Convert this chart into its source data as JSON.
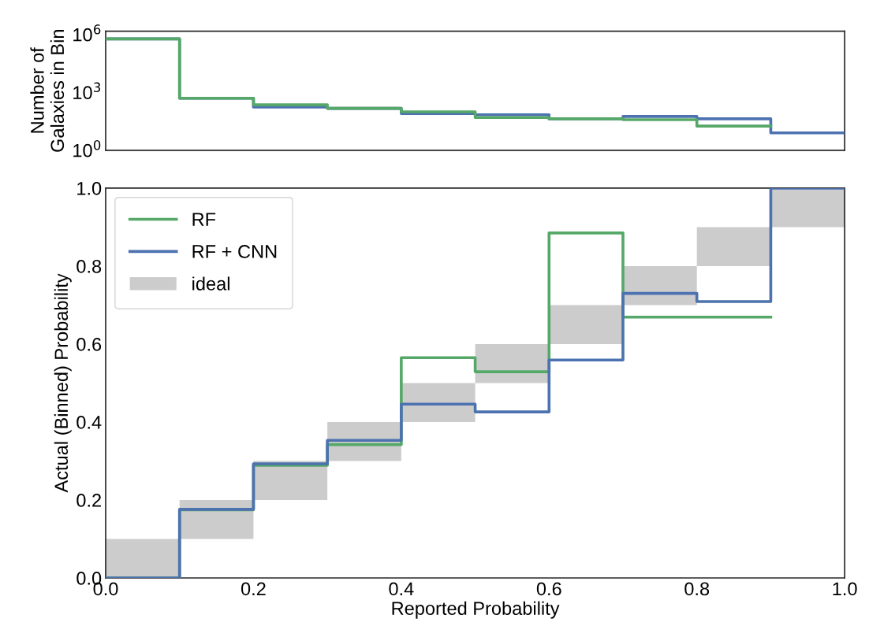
{
  "chart_data": [
    {
      "type": "step",
      "ylabel": "Number of\nGalaxies in Bin",
      "log": "y",
      "xlim": [
        0,
        1
      ],
      "ylim": [
        1,
        1500000
      ],
      "yticks": [
        {
          "value": 1,
          "label": "10$^{0}$"
        },
        {
          "value": 1000,
          "label": "10$^{3}$"
        },
        {
          "value": 1000000,
          "label": "10$^{6}$"
        }
      ],
      "tick_labels": "y",
      "grid": false,
      "legend": false,
      "series": [
        {
          "color": "#4c72b0",
          "x": [
            0,
            0.1,
            0.2,
            0.3,
            0.4,
            0.5,
            0.6,
            0.7,
            0.8,
            0.9,
            1.0
          ],
          "values": [
            600000,
            500,
            175,
            150,
            80,
            70,
            43,
            57,
            43,
            8,
            8
          ]
        },
        {
          "color": "#55a868",
          "x": [
            0,
            0.1,
            0.2,
            0.3,
            0.4,
            0.5,
            0.6,
            0.7,
            0.8,
            0.9
          ],
          "values": [
            600000,
            500,
            230,
            150,
            100,
            50,
            43,
            39,
            18,
            18
          ]
        }
      ]
    },
    {
      "type": "step",
      "xlabel": "Reported Probability",
      "ylabel": "Actual (Binned) Probability",
      "xlim": [
        0,
        1
      ],
      "ylim": [
        0,
        1
      ],
      "xticks": [
        {
          "value": 0,
          "label": "0.0"
        },
        0.2,
        0.4,
        0.6,
        0.8,
        {
          "value": 1,
          "label": "1.0"
        }
      ],
      "yticks": [
        {
          "value": 0,
          "label": "0.0"
        },
        0.2,
        0.4,
        0.6,
        0.8,
        {
          "value": 1,
          "label": "1.0"
        }
      ],
      "grid": false,
      "legend": "top left",
      "series": [
        {
          "name": "RF",
          "color": "#55a868",
          "x": [
            0,
            0.1,
            0.2,
            0.3,
            0.4,
            0.5,
            0.6,
            0.7,
            0.8,
            0.9
          ],
          "values": [
            0,
            0.175,
            0.289,
            0.342,
            0.565,
            0.529,
            0.885,
            0.669,
            0.669,
            0.669
          ]
        },
        {
          "name": "RF + CNN",
          "color": "#4c72b0",
          "x": [
            0,
            0.1,
            0.2,
            0.3,
            0.4,
            0.5,
            0.6,
            0.7,
            0.8,
            0.9,
            1.0
          ],
          "values": [
            0,
            0.176,
            0.293,
            0.353,
            0.446,
            0.426,
            0.559,
            0.73,
            0.709,
            1.0,
            1.0
          ]
        },
        {
          "name": "ideal",
          "type": "bar",
          "color": "#cccccc",
          "x": [
            0.05,
            0.15,
            0.25,
            0.35,
            0.45,
            0.55,
            0.65,
            0.75,
            0.85,
            0.95
          ],
          "base": [
            0,
            0.1,
            0.2,
            0.3,
            0.4,
            0.5,
            0.6,
            0.7,
            0.8,
            0.9
          ],
          "values": [
            0.1,
            0.1,
            0.1,
            0.1,
            0.1,
            0.1,
            0.1,
            0.1,
            0.1,
            0.1
          ]
        }
      ]
    }
  ]
}
